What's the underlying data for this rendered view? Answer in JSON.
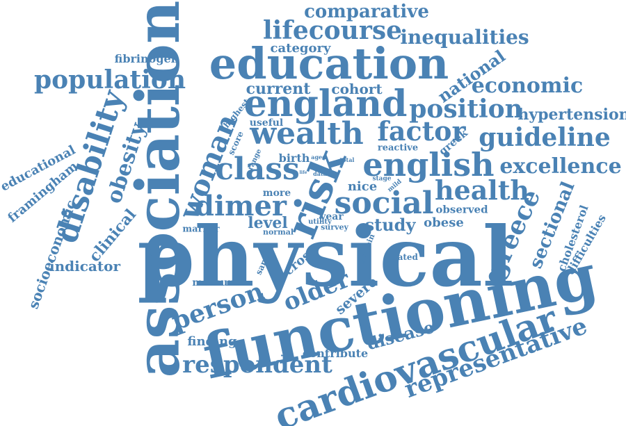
{
  "color": "#4a82b4",
  "words": [
    "physical",
    "functioning",
    "association",
    "education",
    "england",
    "wealth",
    "risk",
    "english",
    "cardiovascular",
    "social",
    "class",
    "health",
    "factor",
    "woman",
    "dimer",
    "disability",
    "lifecourse",
    "comparative",
    "inequalities",
    "population",
    "position",
    "guideline",
    "excellence",
    "economic",
    "hypertension",
    "national",
    "obesity",
    "representative",
    "respondent",
    "person",
    "older",
    "greece",
    "sectional",
    "study",
    "disease",
    "level",
    "current",
    "cohort",
    "category",
    "fibrinogen",
    "educational",
    "framingham",
    "socioeconomic",
    "clinical",
    "indicator",
    "measure",
    "finding",
    "contribute",
    "severe",
    "cross",
    "observed",
    "obese",
    "nice",
    "greek",
    "cholesterol",
    "difficulties",
    "birth",
    "marker",
    "more",
    "useful",
    "score",
    "range",
    "highest",
    "reactive",
    "sample",
    "year",
    "survey",
    "normal",
    "utility",
    "protein",
    "related",
    "mild",
    "stage",
    "data",
    "total",
    "aged",
    "life"
  ]
}
